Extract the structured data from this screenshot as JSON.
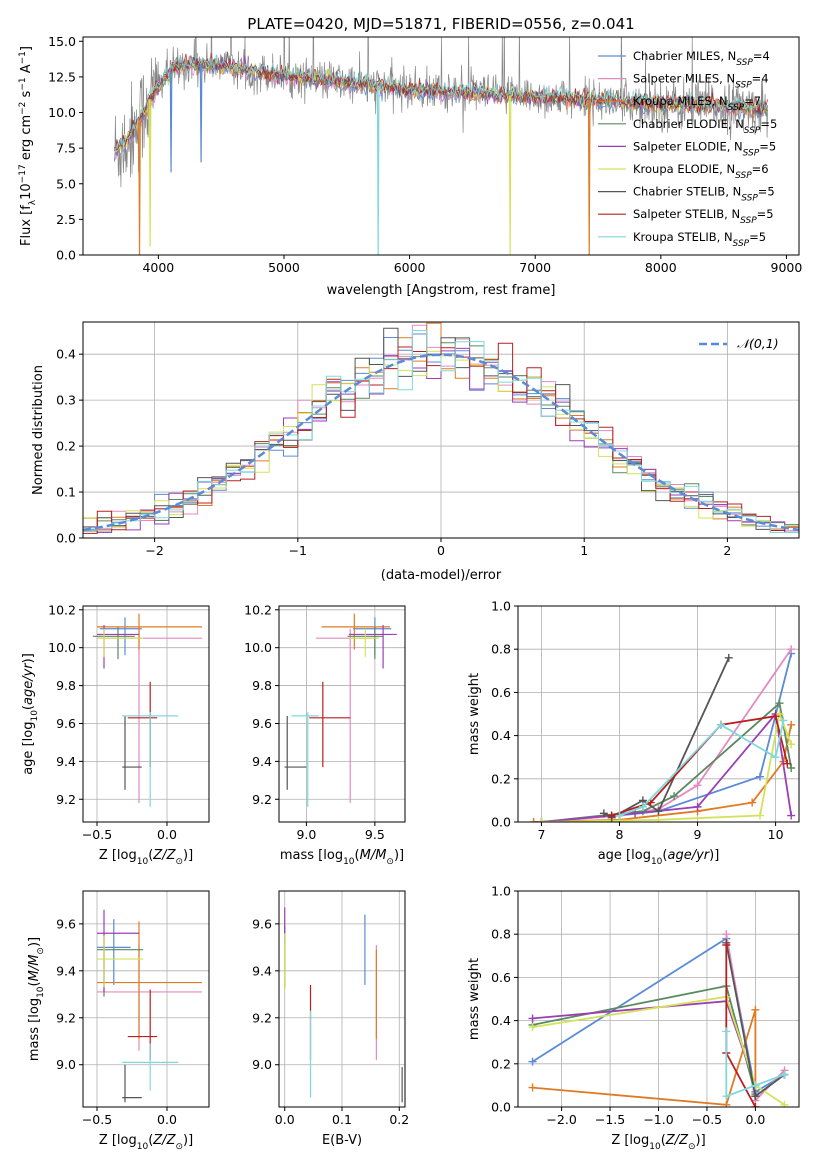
{
  "figure_title": "PLATE=0420, MJD=51871, FIBERID=0556, z=0.041",
  "colors": {
    "Chabrier MILES": "#5b8bd6",
    "Salpeter MILES": "#e58ac0",
    "Kroupa MILES": "#e07b25",
    "Chabrier ELODIE": "#5a8a60",
    "Salpeter ELODIE": "#9b3fb5",
    "Kroupa ELODIE": "#d4e25a",
    "Chabrier STELIB": "#555555",
    "Salpeter STELIB": "#b82020",
    "Kroupa STELIB": "#7fd8dc",
    "data_spectrum": "#888888",
    "normal_curve": "#5b8bd6",
    "grid": "#b0b0b0"
  },
  "chart_data": [
    {
      "id": "spectrum",
      "type": "line",
      "title": "PLATE=0420, MJD=51871, FIBERID=0556, z=0.041",
      "xlabel": "wavelength [Angstrom, rest frame]",
      "ylabel": "Flux [f_λ 10^-17 erg cm^-2 s^-1 A^-1]",
      "xlim": [
        3400,
        9100
      ],
      "ylim": [
        0,
        15.3
      ],
      "xticks": [
        4000,
        5000,
        6000,
        7000,
        8000,
        9000
      ],
      "yticks": [
        0.0,
        2.5,
        5.0,
        7.5,
        10.0,
        12.5,
        15.0
      ],
      "grid": false,
      "legend_position": "top-right",
      "legend": [
        "Chabrier MILES, N_SSP=4",
        "Salpeter MILES, N_SSP=4",
        "Kroupa MILES, N_SSP=7",
        "Chabrier ELODIE, N_SSP=5",
        "Salpeter ELODIE, N_SSP=5",
        "Kroupa ELODIE, N_SSP=6",
        "Chabrier STELIB, N_SSP=5",
        "Salpeter STELIB, N_SSP=5",
        "Kroupa STELIB, N_SSP=5"
      ],
      "continuum": [
        [
          3650,
          7.2
        ],
        [
          3750,
          8.0
        ],
        [
          3850,
          9.5
        ],
        [
          3950,
          11.2
        ],
        [
          4050,
          12.5
        ],
        [
          4150,
          13.2
        ],
        [
          4300,
          13.4
        ],
        [
          4500,
          13.3
        ],
        [
          4700,
          13.0
        ],
        [
          5000,
          12.6
        ],
        [
          5300,
          12.3
        ],
        [
          5600,
          12.0
        ],
        [
          6000,
          11.6
        ],
        [
          6400,
          11.4
        ],
        [
          6800,
          11.2
        ],
        [
          7200,
          11.0
        ],
        [
          7600,
          10.8
        ],
        [
          8000,
          10.6
        ],
        [
          8400,
          10.5
        ],
        [
          8800,
          10.3
        ]
      ],
      "absorption_features": [
        [
          3934,
          "Kroupa ELODIE",
          0.6
        ],
        [
          3850,
          "Kroupa MILES",
          0
        ],
        [
          4101,
          "Chabrier MILES",
          5.8
        ],
        [
          4340,
          "Chabrier MILES",
          6.5
        ],
        [
          5750,
          "Kroupa STELIB",
          0
        ],
        [
          6800,
          "Kroupa ELODIE",
          0
        ],
        [
          7430,
          "Kroupa MILES",
          0
        ]
      ]
    },
    {
      "id": "residuals",
      "type": "histogram",
      "xlabel": "(data-model)/error",
      "ylabel": "Normed distribution",
      "xlim": [
        -2.5,
        2.5
      ],
      "ylim": [
        0,
        0.47
      ],
      "xticks": [
        -2,
        -1,
        0,
        1,
        2
      ],
      "yticks": [
        0.0,
        0.1,
        0.2,
        0.3,
        0.4
      ],
      "grid": true,
      "legend_position": "top-right",
      "legend": [
        "𝒩(0,1)"
      ],
      "bin_width": 0.1,
      "reference": "normal(0,1)"
    },
    {
      "id": "age_vs_Z",
      "type": "scatter",
      "xlabel": "Z [log10(Z/Z⊙)]",
      "ylabel": "age  [log10(age/yr)]",
      "xlim": [
        -0.6,
        0.3
      ],
      "ylim": [
        9.08,
        10.22
      ],
      "xticks": [
        -0.5,
        0.0
      ],
      "yticks": [
        9.2,
        9.4,
        9.6,
        9.8,
        10.0,
        10.2
      ],
      "grid": true,
      "points": [
        {
          "model": "Chabrier MILES",
          "x": -0.3,
          "xerr": [
            0.18,
            0.12
          ],
          "y": 10.1,
          "yerr": [
            0.14,
            0.06
          ]
        },
        {
          "model": "Salpeter MILES",
          "x": -0.2,
          "xerr": [
            0.3,
            0.45
          ],
          "y": 10.05,
          "yerr": [
            0.87,
            0.05
          ]
        },
        {
          "model": "Kroupa MILES",
          "x": -0.2,
          "xerr": [
            0.3,
            0.45
          ],
          "y": 10.11,
          "yerr": [
            0.12,
            0.07
          ]
        },
        {
          "model": "Chabrier ELODIE",
          "x": -0.35,
          "xerr": [
            0.18,
            0.12
          ],
          "y": 10.06,
          "yerr": [
            0.12,
            0.05
          ]
        },
        {
          "model": "Salpeter ELODIE",
          "x": -0.45,
          "xerr": [
            0.05,
            0.25
          ],
          "y": 10.07,
          "yerr": [
            0.18,
            0.05
          ]
        },
        {
          "model": "Kroupa ELODIE",
          "x": -0.45,
          "xerr": [
            0.05,
            0.28
          ],
          "y": 10.05,
          "yerr": [
            0.1,
            0.05
          ]
        },
        {
          "model": "Chabrier STELIB",
          "x": -0.3,
          "xerr": [
            0.02,
            0.12
          ],
          "y": 9.37,
          "yerr": [
            0.12,
            0.27
          ]
        },
        {
          "model": "Salpeter STELIB",
          "x": -0.12,
          "xerr": [
            0.16,
            0.05
          ],
          "y": 9.63,
          "yerr": [
            0.26,
            0.19
          ]
        },
        {
          "model": "Kroupa STELIB",
          "x": -0.12,
          "xerr": [
            0.2,
            0.2
          ],
          "y": 9.64,
          "yerr": [
            0.48,
            0.02
          ]
        }
      ]
    },
    {
      "id": "age_vs_mass",
      "type": "scatter",
      "xlabel": "mass [log10(M/M⊙)]",
      "ylabel": "",
      "xlim": [
        8.8,
        9.72
      ],
      "ylim": [
        9.08,
        10.22
      ],
      "xticks": [
        9.0,
        9.5
      ],
      "yticks": [
        9.2,
        9.4,
        9.6,
        9.8,
        10.0,
        10.2
      ],
      "grid": true,
      "points": [
        {
          "model": "Chabrier MILES",
          "x": 9.5,
          "xerr": [
            0.16,
            0.12
          ],
          "y": 10.1,
          "yerr": [
            0.14,
            0.06
          ]
        },
        {
          "model": "Salpeter MILES",
          "x": 9.32,
          "xerr": [
            0.25,
            0.2
          ],
          "y": 10.05,
          "yerr": [
            0.87,
            0.05
          ]
        },
        {
          "model": "Kroupa MILES",
          "x": 9.35,
          "xerr": [
            0.24,
            0.26
          ],
          "y": 10.11,
          "yerr": [
            0.12,
            0.07
          ]
        },
        {
          "model": "Chabrier ELODIE",
          "x": 9.5,
          "xerr": [
            0.2,
            0.06
          ],
          "y": 10.06,
          "yerr": [
            0.12,
            0.05
          ]
        },
        {
          "model": "Salpeter ELODIE",
          "x": 9.56,
          "xerr": [
            0.25,
            0.1
          ],
          "y": 10.07,
          "yerr": [
            0.18,
            0.05
          ]
        },
        {
          "model": "Kroupa ELODIE",
          "x": 9.43,
          "xerr": [
            0.12,
            0.1
          ],
          "y": 10.05,
          "yerr": [
            0.1,
            0.05
          ]
        },
        {
          "model": "Chabrier STELIB",
          "x": 8.86,
          "xerr": [
            0.02,
            0.14
          ],
          "y": 9.37,
          "yerr": [
            0.12,
            0.27
          ]
        },
        {
          "model": "Salpeter STELIB",
          "x": 9.12,
          "xerr": [
            0.1,
            0.2
          ],
          "y": 9.63,
          "yerr": [
            0.26,
            0.19
          ]
        },
        {
          "model": "Kroupa STELIB",
          "x": 9.01,
          "xerr": [
            0.12,
            0.08
          ],
          "y": 9.64,
          "yerr": [
            0.48,
            0.02
          ]
        }
      ]
    },
    {
      "id": "weight_vs_age",
      "type": "line",
      "xlabel": "age  [log10(age/yr)]",
      "ylabel": "mass weight",
      "xlim": [
        6.7,
        10.3
      ],
      "ylim": [
        0,
        1
      ],
      "xticks": [
        7,
        8,
        9,
        10
      ],
      "yticks": [
        0.0,
        0.2,
        0.4,
        0.6,
        0.8,
        1.0
      ],
      "grid": true,
      "series": [
        {
          "model": "Chabrier MILES",
          "x": [
            7.0,
            8.0,
            8.5,
            9.8,
            10.2
          ],
          "y": [
            0.0,
            0.03,
            0.05,
            0.21,
            0.78
          ]
        },
        {
          "model": "Salpeter MILES",
          "x": [
            7.0,
            8.0,
            8.5,
            9.0,
            10.2
          ],
          "y": [
            0.0,
            0.03,
            0.06,
            0.17,
            0.8
          ]
        },
        {
          "model": "Kroupa MILES",
          "x": [
            6.9,
            8.0,
            9.0,
            9.7,
            10.1,
            10.2
          ],
          "y": [
            0.0,
            0.01,
            0.05,
            0.09,
            0.28,
            0.45
          ]
        },
        {
          "model": "Chabrier ELODIE",
          "x": [
            7.0,
            8.3,
            8.7,
            10.05,
            10.2
          ],
          "y": [
            0.0,
            0.05,
            0.12,
            0.55,
            0.25
          ]
        },
        {
          "model": "Salpeter ELODIE",
          "x": [
            7.0,
            8.2,
            9.0,
            10.0,
            10.2
          ],
          "y": [
            0.0,
            0.04,
            0.07,
            0.5,
            0.03
          ]
        },
        {
          "model": "Kroupa ELODIE",
          "x": [
            7.0,
            8.5,
            9.8,
            10.05,
            10.2
          ],
          "y": [
            0.0,
            0.01,
            0.03,
            0.5,
            0.36
          ]
        },
        {
          "model": "Chabrier STELIB",
          "x": [
            7.8,
            7.9,
            8.3,
            8.5,
            9.4
          ],
          "y": [
            0.04,
            0.02,
            0.1,
            0.05,
            0.76
          ]
        },
        {
          "model": "Salpeter STELIB",
          "x": [
            7.9,
            8.4,
            9.3,
            10.0,
            10.15
          ],
          "y": [
            0.03,
            0.09,
            0.45,
            0.49,
            0.27
          ]
        },
        {
          "model": "Kroupa STELIB",
          "x": [
            8.0,
            8.3,
            9.3,
            10.0,
            10.1
          ],
          "y": [
            0.03,
            0.07,
            0.45,
            0.3,
            0.47
          ]
        }
      ]
    },
    {
      "id": "mass_vs_Z",
      "type": "scatter",
      "xlabel": "Z [log10(Z/Z⊙)]",
      "ylabel": "mass [log10(M/M⊙)]",
      "xlim": [
        -0.6,
        0.3
      ],
      "ylim": [
        8.82,
        9.74
      ],
      "xticks": [
        -0.5,
        0.0
      ],
      "yticks": [
        9.0,
        9.2,
        9.4,
        9.6
      ],
      "grid": true,
      "points": [
        {
          "model": "Chabrier MILES",
          "x": -0.38,
          "xerr": [
            0.12,
            0.12
          ],
          "y": 9.5,
          "yerr": [
            0.16,
            0.12
          ]
        },
        {
          "model": "Salpeter MILES",
          "x": -0.2,
          "xerr": [
            0.3,
            0.45
          ],
          "y": 9.31,
          "yerr": [
            0.25,
            0.2
          ]
        },
        {
          "model": "Kroupa MILES",
          "x": -0.2,
          "xerr": [
            0.3,
            0.45
          ],
          "y": 9.35,
          "yerr": [
            0.24,
            0.26
          ]
        },
        {
          "model": "Chabrier ELODIE",
          "x": -0.45,
          "xerr": [
            0.05,
            0.28
          ],
          "y": 9.49,
          "yerr": [
            0.2,
            0.06
          ]
        },
        {
          "model": "Salpeter ELODIE",
          "x": -0.45,
          "xerr": [
            0.05,
            0.25
          ],
          "y": 9.56,
          "yerr": [
            0.25,
            0.1
          ]
        },
        {
          "model": "Kroupa ELODIE",
          "x": -0.45,
          "xerr": [
            0.05,
            0.28
          ],
          "y": 9.45,
          "yerr": [
            0.12,
            0.1
          ]
        },
        {
          "model": "Chabrier STELIB",
          "x": -0.3,
          "xerr": [
            0.02,
            0.12
          ],
          "y": 8.86,
          "yerr": [
            0.02,
            0.14
          ]
        },
        {
          "model": "Salpeter STELIB",
          "x": -0.12,
          "xerr": [
            0.16,
            0.05
          ],
          "y": 9.12,
          "yerr": [
            0.1,
            0.2
          ]
        },
        {
          "model": "Kroupa STELIB",
          "x": -0.12,
          "xerr": [
            0.2,
            0.2
          ],
          "y": 9.01,
          "yerr": [
            0.12,
            0.08
          ]
        }
      ]
    },
    {
      "id": "mass_vs_EBV",
      "type": "scatter",
      "xlabel": "E(B-V)",
      "ylabel": "",
      "xlim": [
        -0.01,
        0.21
      ],
      "ylim": [
        8.82,
        9.74
      ],
      "xticks": [
        0.0,
        0.1,
        0.2
      ],
      "yticks": [
        9.0,
        9.2,
        9.4,
        9.6
      ],
      "grid": true,
      "points": [
        {
          "model": "Chabrier MILES",
          "x": 0.14,
          "xerr": [
            0,
            0
          ],
          "y": 9.5,
          "yerr": [
            0.16,
            0.14
          ]
        },
        {
          "model": "Salpeter MILES",
          "x": 0.16,
          "xerr": [
            0,
            0
          ],
          "y": 9.31,
          "yerr": [
            0.29,
            0.2
          ]
        },
        {
          "model": "Kroupa MILES",
          "x": 0.16,
          "xerr": [
            0,
            0
          ],
          "y": 9.35,
          "yerr": [
            0.24,
            0.14
          ]
        },
        {
          "model": "Chabrier ELODIE",
          "x": 0.0,
          "xerr": [
            0,
            0
          ],
          "y": 9.49,
          "yerr": [
            0.16,
            0.1
          ]
        },
        {
          "model": "Salpeter ELODIE",
          "x": 0.0,
          "xerr": [
            0,
            0
          ],
          "y": 9.56,
          "yerr": [
            0.05,
            0.11
          ]
        },
        {
          "model": "Kroupa ELODIE",
          "x": 0.0,
          "xerr": [
            0,
            0
          ],
          "y": 9.45,
          "yerr": [
            0.13,
            0.11
          ]
        },
        {
          "model": "Chabrier STELIB",
          "x": 0.205,
          "xerr": [
            0,
            0
          ],
          "y": 8.86,
          "yerr": [
            0.02,
            0.13
          ]
        },
        {
          "model": "Salpeter STELIB",
          "x": 0.045,
          "xerr": [
            0,
            0
          ],
          "y": 9.12,
          "yerr": [
            0.1,
            0.22
          ]
        },
        {
          "model": "Kroupa STELIB",
          "x": 0.045,
          "xerr": [
            0,
            0
          ],
          "y": 9.01,
          "yerr": [
            0.15,
            0.22
          ]
        }
      ]
    },
    {
      "id": "weight_vs_Z",
      "type": "line",
      "xlabel": "Z [log10(Z/Z⊙)]",
      "ylabel": "mass weight",
      "xlim": [
        -2.45,
        0.45
      ],
      "ylim": [
        0,
        1
      ],
      "xticks": [
        -2.0,
        -1.5,
        -1.0,
        -0.5,
        0.0
      ],
      "yticks": [
        0.0,
        0.2,
        0.4,
        0.6,
        0.8,
        1.0
      ],
      "grid": true,
      "series": [
        {
          "model": "Chabrier MILES",
          "x": [
            -2.3,
            -0.3,
            0.0,
            0.3
          ],
          "y": [
            0.21,
            0.78,
            0.07,
            0.15
          ]
        },
        {
          "model": "Salpeter MILES",
          "x": [
            -0.3,
            0.0,
            0.3
          ],
          "y": [
            0.8,
            0.03,
            0.17
          ]
        },
        {
          "model": "Kroupa MILES",
          "x": [
            -2.3,
            -0.3,
            0.0,
            0.0
          ],
          "y": [
            0.09,
            0.01,
            0.45,
            0.05
          ]
        },
        {
          "model": "Chabrier ELODIE",
          "x": [
            -2.3,
            -0.3,
            0.0
          ],
          "y": [
            0.38,
            0.56,
            0.06
          ]
        },
        {
          "model": "Salpeter ELODIE",
          "x": [
            -2.3,
            -0.3,
            0.0
          ],
          "y": [
            0.41,
            0.49,
            0.1
          ]
        },
        {
          "model": "Kroupa ELODIE",
          "x": [
            -2.3,
            -0.3,
            0.0,
            0.3
          ],
          "y": [
            0.37,
            0.51,
            0.1,
            0.01
          ]
        },
        {
          "model": "Chabrier STELIB",
          "x": [
            -0.3,
            0.0,
            0.3
          ],
          "y": [
            0.76,
            0.05,
            0.15
          ]
        },
        {
          "model": "Salpeter STELIB",
          "x": [
            -0.3,
            -0.3,
            0.0
          ],
          "y": [
            0.75,
            0.25,
            0.0
          ]
        },
        {
          "model": "Kroupa STELIB",
          "x": [
            -0.3,
            -0.3,
            0.0,
            0.3
          ],
          "y": [
            0.35,
            0.05,
            0.1,
            0.15
          ]
        }
      ]
    }
  ]
}
